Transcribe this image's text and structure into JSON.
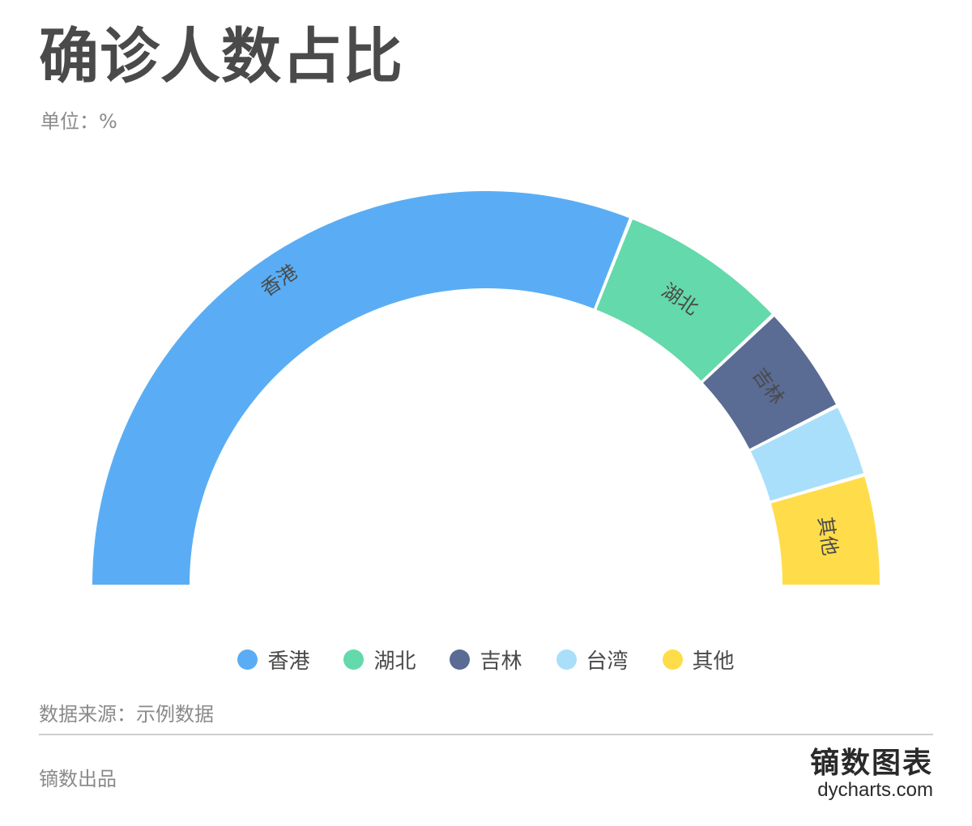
{
  "title": "确诊人数占比",
  "subtitle": "单位：%",
  "chart_data": {
    "type": "pie",
    "variant": "half-donut",
    "title": "确诊人数占比",
    "unit": "%",
    "categories": [
      "香港",
      "湖北",
      "吉林",
      "台湾",
      "其他"
    ],
    "values": [
      62,
      14,
      9,
      6,
      9
    ],
    "colors": [
      "#5aadf4",
      "#64d9ab",
      "#5a6b94",
      "#a9dffa",
      "#ffdc4a"
    ],
    "slice_labels_shown": [
      true,
      true,
      true,
      false,
      true
    ],
    "legend_position": "bottom"
  },
  "source": "数据来源：示例数据",
  "producer": "镝数出品",
  "brand": {
    "name": "镝数图表",
    "url": "dycharts.com"
  }
}
